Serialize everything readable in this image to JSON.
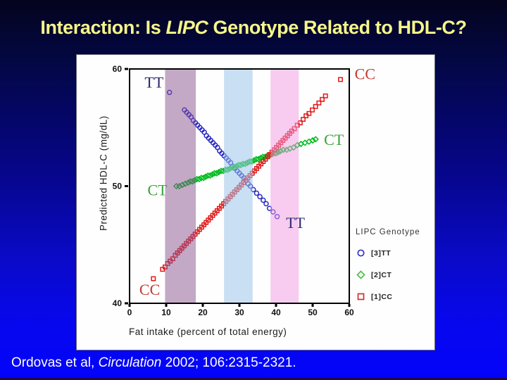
{
  "slide": {
    "title": {
      "prefix": "Interaction: Is ",
      "italic": "LIPC",
      "suffix": " Genotype Related to HDL-C?",
      "color": "#f7f78a"
    },
    "citation": {
      "prefix": "Ordovas et al, ",
      "italic": "Circulation",
      "suffix": " 2002; 106:2315-2321.",
      "color": "#ffffff"
    },
    "background": {
      "top_color": "#04041e",
      "bottom_color": "#0303fb"
    }
  },
  "chart_data": {
    "type": "scatter",
    "title": "",
    "xlabel": "Fat intake (percent of total energy)",
    "ylabel": "Predicted HDL-C (mg/dL)",
    "xlim": [
      0,
      60
    ],
    "ylim": [
      40,
      60
    ],
    "x_ticks": [
      0,
      10,
      20,
      30,
      40,
      50,
      60
    ],
    "y_ticks": [
      40,
      50,
      60
    ],
    "grid": false,
    "bands": [
      {
        "name": "purple-band",
        "x0": 9.7,
        "x1": 18.1,
        "color": "#8a5490",
        "opacity": 0.5
      },
      {
        "name": "blue-band",
        "x0": 25.8,
        "x1": 33.6,
        "color": "#9cc4ea",
        "opacity": 0.55
      },
      {
        "name": "pink-band",
        "x0": 38.5,
        "x1": 46.2,
        "color": "#f09ae2",
        "opacity": 0.5
      }
    ],
    "series": [
      {
        "name": "[3]TT",
        "marker": "circle",
        "color": "#2a2ac4",
        "points": [
          [
            10.9,
            58.0
          ],
          [
            15.0,
            56.5
          ],
          [
            15.6,
            56.3
          ],
          [
            16.2,
            56.1
          ],
          [
            16.8,
            55.9
          ],
          [
            17.4,
            55.6
          ],
          [
            18.0,
            55.4
          ],
          [
            18.6,
            55.2
          ],
          [
            19.2,
            55.0
          ],
          [
            19.8,
            54.8
          ],
          [
            20.4,
            54.6
          ],
          [
            21.0,
            54.3
          ],
          [
            21.6,
            54.1
          ],
          [
            22.2,
            53.9
          ],
          [
            22.8,
            53.7
          ],
          [
            23.4,
            53.5
          ],
          [
            24.0,
            53.3
          ],
          [
            24.6,
            53.0
          ],
          [
            25.2,
            52.8
          ],
          [
            25.8,
            52.6
          ],
          [
            26.4,
            52.4
          ],
          [
            27.0,
            52.2
          ],
          [
            27.6,
            52.0
          ],
          [
            28.2,
            51.7
          ],
          [
            28.8,
            51.5
          ],
          [
            29.4,
            51.3
          ],
          [
            30.0,
            51.1
          ],
          [
            30.6,
            50.9
          ],
          [
            31.2,
            50.7
          ],
          [
            31.8,
            50.5
          ],
          [
            32.4,
            50.2
          ],
          [
            33.0,
            50.0
          ],
          [
            33.8,
            49.7
          ],
          [
            34.7,
            49.4
          ],
          [
            35.6,
            49.1
          ],
          [
            36.5,
            48.8
          ],
          [
            37.3,
            48.5
          ],
          [
            38.2,
            48.1
          ],
          [
            39.2,
            47.8
          ],
          [
            40.3,
            47.4
          ]
        ]
      },
      {
        "name": "[2]CT",
        "marker": "diamond",
        "color": "#00bc1e",
        "points": [
          [
            12.8,
            50.0
          ],
          [
            13.6,
            50.0
          ],
          [
            14.4,
            50.1
          ],
          [
            15.2,
            50.2
          ],
          [
            16.0,
            50.3
          ],
          [
            16.6,
            50.4
          ],
          [
            17.2,
            50.4
          ],
          [
            17.8,
            50.5
          ],
          [
            18.4,
            50.6
          ],
          [
            19.0,
            50.6
          ],
          [
            19.6,
            50.7
          ],
          [
            20.2,
            50.7
          ],
          [
            20.8,
            50.8
          ],
          [
            21.4,
            50.9
          ],
          [
            22.0,
            50.9
          ],
          [
            22.6,
            51.0
          ],
          [
            23.2,
            51.1
          ],
          [
            23.8,
            51.1
          ],
          [
            24.4,
            51.2
          ],
          [
            25.0,
            51.3
          ],
          [
            25.6,
            51.3
          ],
          [
            26.2,
            51.4
          ],
          [
            26.8,
            51.4
          ],
          [
            27.4,
            51.5
          ],
          [
            28.0,
            51.6
          ],
          [
            28.6,
            51.6
          ],
          [
            29.2,
            51.7
          ],
          [
            29.8,
            51.8
          ],
          [
            30.4,
            51.8
          ],
          [
            31.0,
            51.9
          ],
          [
            31.6,
            51.9
          ],
          [
            32.2,
            52.0
          ],
          [
            32.8,
            52.1
          ],
          [
            33.4,
            52.1
          ],
          [
            34.0,
            52.2
          ],
          [
            34.6,
            52.3
          ],
          [
            35.2,
            52.3
          ],
          [
            35.8,
            52.4
          ],
          [
            36.4,
            52.5
          ],
          [
            37.0,
            52.5
          ],
          [
            37.6,
            52.6
          ],
          [
            38.2,
            52.6
          ],
          [
            38.8,
            52.7
          ],
          [
            39.4,
            52.8
          ],
          [
            40.0,
            52.8
          ],
          [
            40.6,
            52.9
          ],
          [
            41.2,
            53.0
          ],
          [
            42.0,
            53.1
          ],
          [
            42.9,
            53.1
          ],
          [
            43.8,
            53.2
          ],
          [
            44.8,
            53.3
          ],
          [
            45.8,
            53.5
          ],
          [
            46.8,
            53.6
          ],
          [
            47.9,
            53.7
          ],
          [
            49.0,
            53.8
          ],
          [
            50.0,
            53.9
          ],
          [
            50.8,
            54.0
          ]
        ]
      },
      {
        "name": "[1]CC",
        "marker": "square",
        "color": "#e01818",
        "points": [
          [
            6.5,
            42.1
          ],
          [
            9.0,
            42.9
          ],
          [
            9.7,
            43.1
          ],
          [
            10.4,
            43.4
          ],
          [
            11.1,
            43.6
          ],
          [
            11.8,
            43.8
          ],
          [
            12.5,
            44.1
          ],
          [
            13.1,
            44.3
          ],
          [
            13.7,
            44.5
          ],
          [
            14.3,
            44.7
          ],
          [
            14.9,
            44.9
          ],
          [
            15.5,
            45.1
          ],
          [
            16.1,
            45.3
          ],
          [
            16.7,
            45.5
          ],
          [
            17.3,
            45.7
          ],
          [
            17.9,
            45.9
          ],
          [
            18.5,
            46.1
          ],
          [
            19.1,
            46.3
          ],
          [
            19.7,
            46.5
          ],
          [
            20.3,
            46.7
          ],
          [
            20.9,
            46.9
          ],
          [
            21.5,
            47.1
          ],
          [
            22.1,
            47.3
          ],
          [
            22.7,
            47.5
          ],
          [
            23.3,
            47.7
          ],
          [
            23.9,
            47.9
          ],
          [
            24.5,
            48.1
          ],
          [
            25.1,
            48.3
          ],
          [
            25.7,
            48.5
          ],
          [
            26.3,
            48.7
          ],
          [
            26.9,
            48.9
          ],
          [
            27.5,
            49.1
          ],
          [
            28.1,
            49.3
          ],
          [
            28.7,
            49.5
          ],
          [
            29.3,
            49.7
          ],
          [
            29.9,
            49.9
          ],
          [
            30.5,
            50.1
          ],
          [
            31.1,
            50.3
          ],
          [
            31.7,
            50.5
          ],
          [
            32.3,
            50.7
          ],
          [
            32.9,
            50.9
          ],
          [
            33.5,
            51.1
          ],
          [
            34.1,
            51.3
          ],
          [
            34.7,
            51.5
          ],
          [
            35.3,
            51.7
          ],
          [
            35.9,
            51.9
          ],
          [
            36.5,
            52.1
          ],
          [
            37.1,
            52.3
          ],
          [
            37.7,
            52.5
          ],
          [
            38.3,
            52.7
          ],
          [
            38.9,
            52.9
          ],
          [
            39.5,
            53.1
          ],
          [
            40.1,
            53.3
          ],
          [
            40.7,
            53.5
          ],
          [
            41.3,
            53.7
          ],
          [
            41.9,
            53.9
          ],
          [
            42.5,
            54.1
          ],
          [
            43.1,
            54.3
          ],
          [
            43.7,
            54.5
          ],
          [
            44.3,
            54.7
          ],
          [
            45.0,
            54.9
          ],
          [
            45.8,
            55.2
          ],
          [
            46.6,
            55.4
          ],
          [
            47.4,
            55.7
          ],
          [
            48.2,
            56.0
          ],
          [
            49.0,
            56.2
          ],
          [
            49.9,
            56.5
          ],
          [
            50.8,
            56.8
          ],
          [
            51.7,
            57.1
          ],
          [
            52.6,
            57.4
          ],
          [
            53.5,
            57.7
          ],
          [
            57.6,
            59.1
          ]
        ]
      }
    ],
    "annotations": [
      {
        "text": "TT",
        "x": 6.7,
        "y": 58.9,
        "color": "#28286e"
      },
      {
        "text": "CC",
        "x": 64.3,
        "y": 59.6,
        "color": "#c23a32"
      },
      {
        "text": "CT",
        "x": 55.8,
        "y": 54.0,
        "color": "#3aa33a"
      },
      {
        "text": "CT",
        "x": 7.6,
        "y": 49.7,
        "color": "#3aa33a"
      },
      {
        "text": "TT",
        "x": 45.3,
        "y": 46.9,
        "color": "#28286e"
      },
      {
        "text": "CC",
        "x": 5.5,
        "y": 41.2,
        "color": "#c23a32"
      }
    ],
    "legend": {
      "title": "LIPC Genotype",
      "position": "right-outside",
      "items": [
        {
          "label": "[3]TT",
          "marker": "circle",
          "color": "#3232c8"
        },
        {
          "label": "[2]CT",
          "marker": "diamond",
          "color": "#50c050"
        },
        {
          "label": "[1]CC",
          "marker": "square",
          "color": "#d03030"
        }
      ]
    }
  }
}
